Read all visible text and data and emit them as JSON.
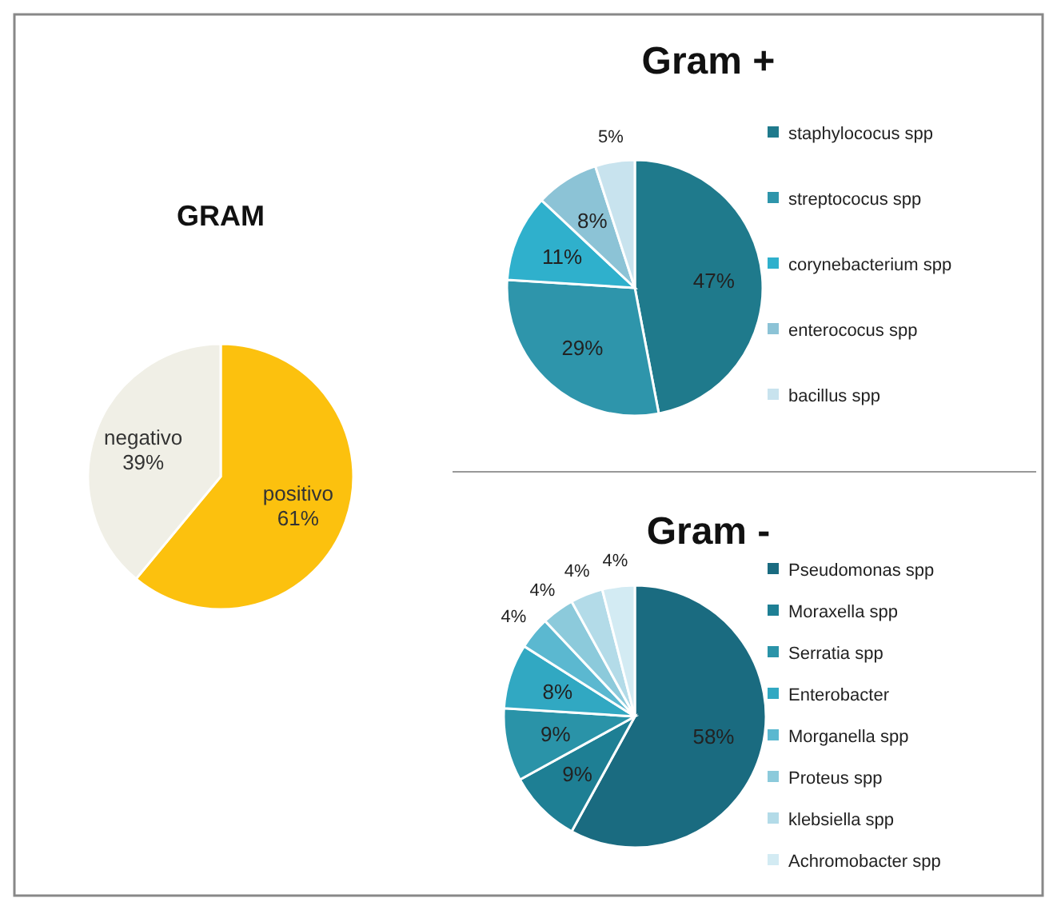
{
  "chart_data": [
    {
      "type": "pie",
      "title": "GRAM",
      "categories": [
        "positivo",
        "negativo"
      ],
      "values": [
        61,
        39
      ],
      "colors": [
        "#fcc10e",
        "#f0efe6"
      ],
      "value_labels": [
        "61%",
        "39%"
      ],
      "legend": false
    },
    {
      "type": "pie",
      "title": "Gram +",
      "categories": [
        "staphylococus spp",
        "streptococus spp",
        "corynebacterium spp",
        "enterococus spp",
        "bacillus spp"
      ],
      "values": [
        47,
        29,
        11,
        8,
        5
      ],
      "colors": [
        "#1f7a8c",
        "#2e95ab",
        "#2fb0cc",
        "#8cc3d6",
        "#c8e3ee"
      ],
      "value_labels": [
        "47%",
        "29%",
        "11%",
        "8%",
        "5%"
      ],
      "legend": "right"
    },
    {
      "type": "pie",
      "title": "Gram -",
      "categories": [
        "Pseudomonas spp",
        "Moraxella spp",
        "Serratia spp",
        "Enterobacter",
        "Morganella spp",
        "Proteus spp",
        "klebsiella spp",
        "Achromobacter spp"
      ],
      "values": [
        58,
        9,
        9,
        8,
        4,
        4,
        4,
        4
      ],
      "colors": [
        "#1a6b80",
        "#1e7f94",
        "#2a93a8",
        "#31a8c2",
        "#5bb8d0",
        "#8ccadb",
        "#b3dbe8",
        "#d3ebf3"
      ],
      "value_labels": [
        "58%",
        "9%",
        "9%",
        "8%",
        "4%",
        "4%",
        "4%",
        "4%"
      ],
      "legend": "right"
    }
  ]
}
